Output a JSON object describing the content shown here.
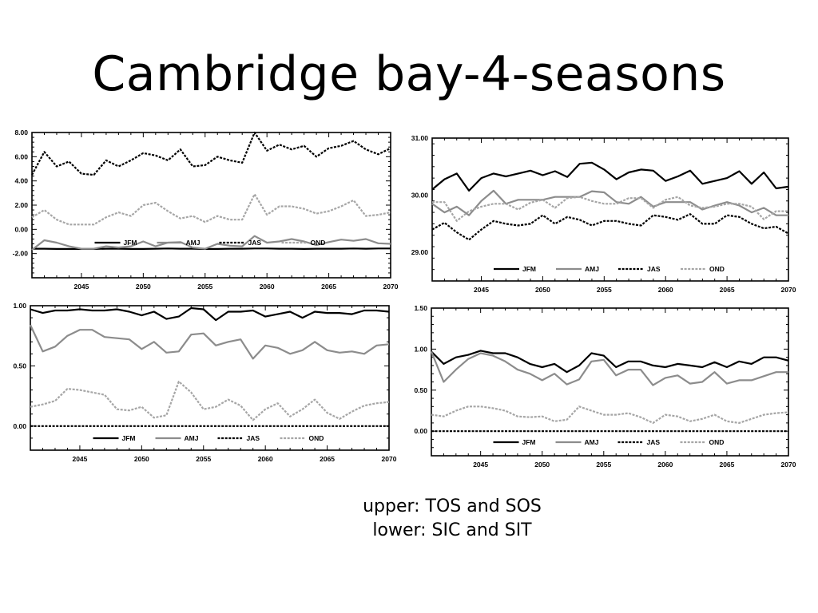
{
  "slide": {
    "title": "Cambridge bay-4-seasons",
    "caption_line1": "upper: TOS and SOS",
    "caption_line2": "lower: SIC and SIT"
  },
  "colors": {
    "black": "#000000",
    "gray": "#8c8c8c",
    "light_gray": "#a6a6a6"
  },
  "series_styles": [
    {
      "name": "JFM",
      "color": "#000000",
      "dash": "solid"
    },
    {
      "name": "AMJ",
      "color": "#8c8c8c",
      "dash": "solid"
    },
    {
      "name": "JAS",
      "color": "#000000",
      "dash": "dotted"
    },
    {
      "name": "OND",
      "color": "#a6a6a6",
      "dash": "dotted"
    }
  ],
  "chart_data": [
    {
      "type": "line",
      "xlim": [
        2041,
        2070
      ],
      "x_ticks": [
        "2045",
        "2050",
        "2055",
        "2060",
        "2065",
        "2070"
      ],
      "ylim": [
        -4,
        8
      ],
      "y_ticks": [
        "8.00",
        "6.00",
        "4.00",
        "2.00",
        "0.00",
        "-2.00"
      ],
      "legend": "bottom",
      "x": [
        2041,
        2042,
        2043,
        2044,
        2045,
        2046,
        2047,
        2048,
        2049,
        2050,
        2051,
        2052,
        2053,
        2054,
        2055,
        2056,
        2057,
        2058,
        2059,
        2060,
        2061,
        2062,
        2063,
        2064,
        2065,
        2066,
        2067,
        2068,
        2069,
        2070
      ],
      "series": [
        {
          "name": "JFM",
          "values": [
            -1.6,
            -1.6,
            -1.62,
            -1.62,
            -1.62,
            -1.62,
            -1.6,
            -1.6,
            -1.62,
            -1.62,
            -1.6,
            -1.58,
            -1.6,
            -1.6,
            -1.62,
            -1.62,
            -1.6,
            -1.6,
            -1.58,
            -1.58,
            -1.6,
            -1.6,
            -1.62,
            -1.6,
            -1.6,
            -1.6,
            -1.58,
            -1.6,
            -1.58,
            -1.58
          ]
        },
        {
          "name": "AMJ",
          "values": [
            -1.7,
            -0.9,
            -1.1,
            -1.4,
            -1.6,
            -1.6,
            -1.4,
            -1.5,
            -1.4,
            -1.0,
            -1.4,
            -1.1,
            -1.05,
            -1.5,
            -1.6,
            -1.2,
            -1.35,
            -1.4,
            -0.55,
            -1.1,
            -1.0,
            -0.8,
            -1.0,
            -1.3,
            -1.05,
            -0.85,
            -0.95,
            -0.8,
            -1.15,
            -1.2
          ]
        },
        {
          "name": "JAS",
          "values": [
            4.5,
            6.4,
            5.2,
            5.6,
            4.6,
            4.5,
            5.7,
            5.2,
            5.7,
            6.3,
            6.1,
            5.7,
            6.6,
            5.2,
            5.3,
            6.0,
            5.7,
            5.5,
            8.0,
            6.5,
            7.0,
            6.6,
            6.9,
            6.0,
            6.7,
            6.9,
            7.3,
            6.6,
            6.2,
            6.7
          ]
        },
        {
          "name": "OND",
          "values": [
            1.0,
            1.6,
            0.8,
            0.4,
            0.4,
            0.4,
            1.0,
            1.4,
            1.1,
            2.0,
            2.2,
            1.5,
            0.9,
            1.1,
            0.6,
            1.1,
            0.8,
            0.8,
            2.9,
            1.2,
            1.9,
            1.9,
            1.7,
            1.3,
            1.5,
            1.9,
            2.4,
            1.1,
            1.2,
            1.4
          ]
        }
      ]
    },
    {
      "type": "line",
      "xlim": [
        2041,
        2070
      ],
      "x_ticks": [
        "2045",
        "2050",
        "2055",
        "2060",
        "2065",
        "2070"
      ],
      "ylim": [
        28.5,
        31
      ],
      "y_ticks": [
        "31.00",
        "30.00",
        "29.00"
      ],
      "legend": "bottom",
      "x": [
        2041,
        2042,
        2043,
        2044,
        2045,
        2046,
        2047,
        2048,
        2049,
        2050,
        2051,
        2052,
        2053,
        2054,
        2055,
        2056,
        2057,
        2058,
        2059,
        2060,
        2061,
        2062,
        2063,
        2064,
        2065,
        2066,
        2067,
        2068,
        2069,
        2070
      ],
      "series": [
        {
          "name": "JFM",
          "values": [
            30.1,
            30.28,
            30.38,
            30.08,
            30.3,
            30.38,
            30.33,
            30.38,
            30.43,
            30.35,
            30.42,
            30.32,
            30.55,
            30.57,
            30.45,
            30.28,
            30.4,
            30.45,
            30.43,
            30.25,
            30.33,
            30.43,
            30.2,
            30.25,
            30.3,
            30.42,
            30.2,
            30.4,
            30.12,
            30.15
          ]
        },
        {
          "name": "AMJ",
          "values": [
            29.85,
            29.7,
            29.8,
            29.65,
            29.9,
            30.08,
            29.85,
            29.92,
            29.92,
            29.92,
            29.97,
            29.97,
            29.97,
            30.07,
            30.05,
            29.88,
            29.85,
            29.97,
            29.8,
            29.88,
            29.88,
            29.88,
            29.75,
            29.82,
            29.88,
            29.82,
            29.7,
            29.78,
            29.65,
            29.65
          ]
        },
        {
          "name": "JAS",
          "values": [
            29.4,
            29.52,
            29.35,
            29.22,
            29.4,
            29.55,
            29.5,
            29.47,
            29.5,
            29.65,
            29.5,
            29.62,
            29.57,
            29.47,
            29.55,
            29.55,
            29.5,
            29.47,
            29.65,
            29.62,
            29.57,
            29.67,
            29.5,
            29.5,
            29.65,
            29.62,
            29.5,
            29.42,
            29.45,
            29.33
          ]
        },
        {
          "name": "OND",
          "values": [
            29.88,
            29.88,
            29.55,
            29.72,
            29.8,
            29.85,
            29.85,
            29.75,
            29.87,
            29.92,
            29.78,
            29.95,
            29.97,
            29.9,
            29.85,
            29.85,
            29.95,
            29.95,
            29.78,
            29.92,
            29.97,
            29.82,
            29.78,
            29.8,
            29.85,
            29.85,
            29.8,
            29.58,
            29.72,
            29.72
          ]
        }
      ]
    },
    {
      "type": "line",
      "xlim": [
        2041,
        2070
      ],
      "x_ticks": [
        "2045",
        "2050",
        "2055",
        "2060",
        "2065",
        "2070"
      ],
      "ylim": [
        -0.2,
        1.0
      ],
      "y_ticks": [
        "1.00",
        "0.50",
        "0.00"
      ],
      "legend": "bottom",
      "x": [
        2041,
        2042,
        2043,
        2044,
        2045,
        2046,
        2047,
        2048,
        2049,
        2050,
        2051,
        2052,
        2053,
        2054,
        2055,
        2056,
        2057,
        2058,
        2059,
        2060,
        2061,
        2062,
        2063,
        2064,
        2065,
        2066,
        2067,
        2068,
        2069,
        2070
      ],
      "series": [
        {
          "name": "JFM",
          "values": [
            0.97,
            0.94,
            0.96,
            0.96,
            0.97,
            0.96,
            0.96,
            0.97,
            0.95,
            0.92,
            0.95,
            0.89,
            0.91,
            0.98,
            0.97,
            0.88,
            0.95,
            0.95,
            0.96,
            0.91,
            0.93,
            0.95,
            0.9,
            0.95,
            0.94,
            0.94,
            0.93,
            0.96,
            0.96,
            0.95
          ]
        },
        {
          "name": "AMJ",
          "values": [
            0.84,
            0.62,
            0.66,
            0.75,
            0.8,
            0.8,
            0.74,
            0.73,
            0.72,
            0.64,
            0.7,
            0.61,
            0.62,
            0.76,
            0.77,
            0.67,
            0.7,
            0.72,
            0.56,
            0.67,
            0.65,
            0.6,
            0.63,
            0.7,
            0.63,
            0.61,
            0.62,
            0.6,
            0.67,
            0.68
          ]
        },
        {
          "name": "JAS",
          "values": [
            0.0,
            0.0,
            0.0,
            0.0,
            0.0,
            0.0,
            0.0,
            0.0,
            0.0,
            0.0,
            0.0,
            0.0,
            0.0,
            0.0,
            0.0,
            0.0,
            0.0,
            0.0,
            0.0,
            0.0,
            0.0,
            0.0,
            0.0,
            0.0,
            0.0,
            0.0,
            0.0,
            0.0,
            0.0,
            0.0
          ]
        },
        {
          "name": "OND",
          "values": [
            0.16,
            0.18,
            0.21,
            0.31,
            0.3,
            0.28,
            0.26,
            0.14,
            0.13,
            0.16,
            0.07,
            0.09,
            0.37,
            0.28,
            0.14,
            0.16,
            0.22,
            0.17,
            0.05,
            0.14,
            0.19,
            0.08,
            0.14,
            0.22,
            0.11,
            0.06,
            0.12,
            0.17,
            0.19,
            0.2
          ]
        }
      ]
    },
    {
      "type": "line",
      "xlim": [
        2041,
        2070
      ],
      "x_ticks": [
        "2045",
        "2050",
        "2055",
        "2060",
        "2065",
        "2070"
      ],
      "ylim": [
        -0.3,
        1.5
      ],
      "y_ticks": [
        "1.50",
        "1.00",
        "0.50",
        "0.00"
      ],
      "legend": "bottom",
      "x": [
        2041,
        2042,
        2043,
        2044,
        2045,
        2046,
        2047,
        2048,
        2049,
        2050,
        2051,
        2052,
        2053,
        2054,
        2055,
        2056,
        2057,
        2058,
        2059,
        2060,
        2061,
        2062,
        2063,
        2064,
        2065,
        2066,
        2067,
        2068,
        2069,
        2070
      ],
      "series": [
        {
          "name": "JFM",
          "values": [
            0.97,
            0.82,
            0.9,
            0.93,
            0.98,
            0.95,
            0.95,
            0.9,
            0.82,
            0.78,
            0.82,
            0.72,
            0.8,
            0.95,
            0.92,
            0.78,
            0.85,
            0.85,
            0.8,
            0.78,
            0.82,
            0.8,
            0.78,
            0.84,
            0.78,
            0.85,
            0.82,
            0.9,
            0.9,
            0.86
          ]
        },
        {
          "name": "AMJ",
          "values": [
            0.97,
            0.6,
            0.75,
            0.88,
            0.95,
            0.92,
            0.85,
            0.75,
            0.7,
            0.62,
            0.7,
            0.57,
            0.63,
            0.85,
            0.87,
            0.68,
            0.75,
            0.75,
            0.56,
            0.65,
            0.68,
            0.58,
            0.6,
            0.72,
            0.58,
            0.62,
            0.62,
            0.67,
            0.72,
            0.72
          ]
        },
        {
          "name": "JAS",
          "values": [
            0.0,
            0.0,
            0.0,
            0.0,
            0.0,
            0.0,
            0.0,
            0.0,
            0.0,
            0.0,
            0.0,
            0.0,
            0.0,
            0.0,
            0.0,
            0.0,
            0.0,
            0.0,
            0.0,
            0.0,
            0.0,
            0.0,
            0.0,
            0.0,
            0.0,
            0.0,
            0.0,
            0.0,
            0.0,
            0.0
          ]
        },
        {
          "name": "OND",
          "values": [
            0.2,
            0.18,
            0.25,
            0.3,
            0.3,
            0.28,
            0.25,
            0.18,
            0.17,
            0.18,
            0.12,
            0.14,
            0.3,
            0.25,
            0.2,
            0.2,
            0.22,
            0.17,
            0.1,
            0.2,
            0.18,
            0.12,
            0.15,
            0.2,
            0.12,
            0.1,
            0.15,
            0.2,
            0.22,
            0.23
          ]
        }
      ]
    }
  ]
}
